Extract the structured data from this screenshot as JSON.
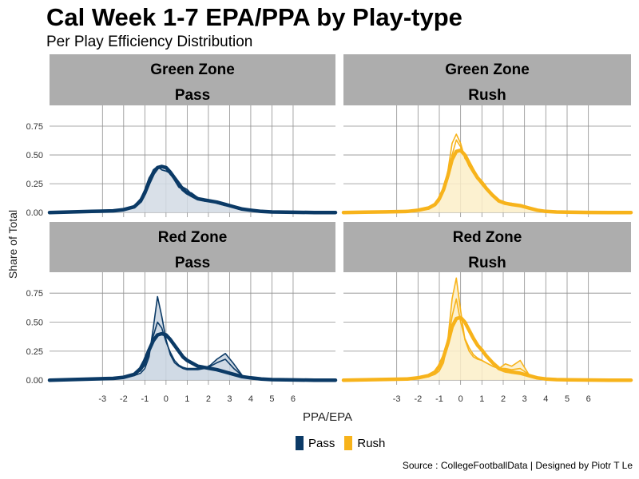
{
  "title": "Cal Week 1-7 EPA/PPA by Play-type",
  "subtitle": "Per Play Efficiency Distribution",
  "caption": "Source : CollegeFootballData | Designed by Piotr T Le",
  "chart_data": {
    "type": "area",
    "xlabel": "PPA/EPA",
    "ylabel": "Share of Total",
    "xlim": [
      -5.5,
      8
    ],
    "ylim": [
      -0.04,
      0.93
    ],
    "x_ticks": [
      -3,
      -2,
      -1,
      0,
      1,
      2,
      3,
      4,
      5,
      6
    ],
    "x_tick_labels": [
      "-3",
      "-2",
      "-1",
      "0",
      "1",
      "2",
      "3",
      "4",
      "5",
      "6"
    ],
    "y_ticks": [
      0,
      0.25,
      0.5,
      0.75
    ],
    "y_tick_labels": [
      "0.00",
      "0.25",
      "0.50",
      "0.75"
    ],
    "legend": {
      "position": "bottom",
      "entries": [
        {
          "name": "Pass",
          "color": "#0B3A66"
        },
        {
          "name": "Rush",
          "color": "#F7B31B"
        }
      ]
    },
    "panels": [
      {
        "zone": "Green Zone",
        "playtype": "Pass",
        "color": "#0B3A66",
        "fill": "#D2DBE4",
        "x": [
          -5.5,
          -4.5,
          -3.5,
          -2.5,
          -2,
          -1.5,
          -1.2,
          -1,
          -0.8,
          -0.6,
          -0.4,
          -0.2,
          0,
          0.2,
          0.4,
          0.6,
          0.8,
          1,
          1.2,
          1.5,
          1.8,
          2.1,
          2.4,
          2.8,
          3.2,
          3.6,
          4,
          4.5,
          5,
          6,
          7,
          8
        ],
        "density": [
          0.0,
          0.005,
          0.01,
          0.015,
          0.025,
          0.05,
          0.1,
          0.17,
          0.26,
          0.34,
          0.39,
          0.4,
          0.39,
          0.35,
          0.3,
          0.25,
          0.2,
          0.17,
          0.15,
          0.12,
          0.11,
          0.1,
          0.09,
          0.07,
          0.05,
          0.03,
          0.02,
          0.01,
          0.005,
          0.002,
          0.0,
          0.0
        ],
        "alt_lines": [
          [
            0.0,
            0.005,
            0.01,
            0.015,
            0.02,
            0.04,
            0.09,
            0.17,
            0.29,
            0.37,
            0.4,
            0.37,
            0.36,
            0.34,
            0.28,
            0.22,
            0.2,
            0.18,
            0.17,
            0.13,
            0.1,
            0.1,
            0.08,
            0.06,
            0.05,
            0.03,
            0.02,
            0.01,
            0.005,
            0.002,
            0.0,
            0.0
          ],
          [
            0.0,
            0.005,
            0.01,
            0.015,
            0.025,
            0.06,
            0.12,
            0.2,
            0.3,
            0.36,
            0.38,
            0.39,
            0.38,
            0.33,
            0.29,
            0.24,
            0.22,
            0.2,
            0.16,
            0.12,
            0.1,
            0.1,
            0.09,
            0.07,
            0.05,
            0.03,
            0.02,
            0.01,
            0.005,
            0.002,
            0.0,
            0.0
          ]
        ]
      },
      {
        "zone": "Green Zone",
        "playtype": "Rush",
        "color": "#F7B31B",
        "fill": "#FCEFC8",
        "x": [
          -5.5,
          -4.5,
          -3.5,
          -2.5,
          -2,
          -1.5,
          -1.2,
          -1,
          -0.8,
          -0.6,
          -0.4,
          -0.2,
          0,
          0.2,
          0.4,
          0.6,
          0.8,
          1,
          1.2,
          1.5,
          1.8,
          2.1,
          2.4,
          2.8,
          3.2,
          3.6,
          4,
          4.5,
          5,
          6,
          7,
          8
        ],
        "density": [
          0.0,
          0.003,
          0.006,
          0.01,
          0.02,
          0.04,
          0.07,
          0.12,
          0.2,
          0.32,
          0.46,
          0.53,
          0.54,
          0.5,
          0.43,
          0.36,
          0.3,
          0.26,
          0.21,
          0.15,
          0.1,
          0.08,
          0.07,
          0.06,
          0.04,
          0.02,
          0.01,
          0.005,
          0.003,
          0.001,
          0.0,
          0.0
        ],
        "alt_lines": [
          [
            0.0,
            0.003,
            0.006,
            0.01,
            0.02,
            0.03,
            0.06,
            0.1,
            0.19,
            0.36,
            0.6,
            0.68,
            0.6,
            0.47,
            0.42,
            0.36,
            0.31,
            0.27,
            0.22,
            0.16,
            0.1,
            0.08,
            0.08,
            0.06,
            0.04,
            0.02,
            0.01,
            0.005,
            0.003,
            0.001,
            0.0,
            0.0
          ],
          [
            0.0,
            0.003,
            0.006,
            0.01,
            0.02,
            0.04,
            0.08,
            0.13,
            0.22,
            0.34,
            0.5,
            0.63,
            0.57,
            0.48,
            0.4,
            0.34,
            0.29,
            0.24,
            0.2,
            0.14,
            0.11,
            0.09,
            0.07,
            0.05,
            0.04,
            0.02,
            0.01,
            0.005,
            0.003,
            0.001,
            0.0,
            0.0
          ]
        ]
      },
      {
        "zone": "Red Zone",
        "playtype": "Pass",
        "color": "#0B3A66",
        "fill": "#C8D4E0",
        "x": [
          -5.5,
          -4.5,
          -3.5,
          -2.5,
          -2,
          -1.5,
          -1.2,
          -1,
          -0.8,
          -0.6,
          -0.4,
          -0.2,
          0,
          0.2,
          0.4,
          0.6,
          0.8,
          1,
          1.2,
          1.5,
          1.8,
          2.1,
          2.4,
          2.8,
          3.2,
          3.6,
          4,
          4.5,
          5,
          6,
          7,
          8
        ],
        "density": [
          0.0,
          0.005,
          0.01,
          0.015,
          0.025,
          0.05,
          0.1,
          0.17,
          0.26,
          0.34,
          0.39,
          0.4,
          0.39,
          0.35,
          0.3,
          0.25,
          0.2,
          0.17,
          0.15,
          0.12,
          0.11,
          0.1,
          0.09,
          0.07,
          0.05,
          0.03,
          0.02,
          0.01,
          0.005,
          0.002,
          0.0,
          0.0
        ],
        "alt_lines": [
          [
            0.0,
            0.002,
            0.005,
            0.01,
            0.02,
            0.04,
            0.06,
            0.1,
            0.2,
            0.45,
            0.72,
            0.55,
            0.35,
            0.22,
            0.15,
            0.12,
            0.1,
            0.09,
            0.09,
            0.09,
            0.1,
            0.13,
            0.18,
            0.23,
            0.14,
            0.04,
            0.01,
            0.005,
            0.002,
            0.001,
            0.0,
            0.0
          ],
          [
            0.0,
            0.003,
            0.006,
            0.012,
            0.02,
            0.05,
            0.08,
            0.13,
            0.23,
            0.38,
            0.5,
            0.45,
            0.33,
            0.24,
            0.17,
            0.13,
            0.11,
            0.1,
            0.1,
            0.1,
            0.1,
            0.12,
            0.15,
            0.18,
            0.1,
            0.04,
            0.015,
            0.006,
            0.002,
            0.001,
            0.0,
            0.0
          ]
        ],
        "fill_line_index": 0
      },
      {
        "zone": "Red Zone",
        "playtype": "Rush",
        "color": "#F7B31B",
        "fill": "#FCEFC8",
        "x": [
          -5.5,
          -4.5,
          -3.5,
          -2.5,
          -2,
          -1.5,
          -1.2,
          -1,
          -0.8,
          -0.6,
          -0.4,
          -0.2,
          0,
          0.2,
          0.4,
          0.6,
          0.8,
          1,
          1.2,
          1.5,
          1.8,
          2.1,
          2.4,
          2.8,
          3.2,
          3.6,
          4,
          4.5,
          5,
          6,
          7,
          8
        ],
        "density": [
          0.0,
          0.003,
          0.006,
          0.01,
          0.02,
          0.04,
          0.07,
          0.12,
          0.2,
          0.32,
          0.46,
          0.53,
          0.54,
          0.5,
          0.43,
          0.36,
          0.3,
          0.26,
          0.21,
          0.15,
          0.1,
          0.08,
          0.07,
          0.06,
          0.04,
          0.02,
          0.01,
          0.005,
          0.003,
          0.001,
          0.0,
          0.0
        ],
        "alt_lines": [
          [
            0.0,
            0.002,
            0.005,
            0.01,
            0.015,
            0.03,
            0.05,
            0.08,
            0.15,
            0.35,
            0.7,
            0.88,
            0.6,
            0.35,
            0.25,
            0.2,
            0.18,
            0.17,
            0.15,
            0.12,
            0.1,
            0.14,
            0.12,
            0.17,
            0.05,
            0.02,
            0.01,
            0.005,
            0.002,
            0.001,
            0.0,
            0.0
          ],
          [
            0.0,
            0.003,
            0.006,
            0.01,
            0.02,
            0.04,
            0.07,
            0.11,
            0.2,
            0.33,
            0.55,
            0.7,
            0.5,
            0.36,
            0.28,
            0.22,
            0.19,
            0.17,
            0.15,
            0.12,
            0.1,
            0.1,
            0.09,
            0.1,
            0.05,
            0.02,
            0.01,
            0.005,
            0.002,
            0.001,
            0.0,
            0.0
          ]
        ],
        "fill_line_index": 0
      }
    ]
  }
}
